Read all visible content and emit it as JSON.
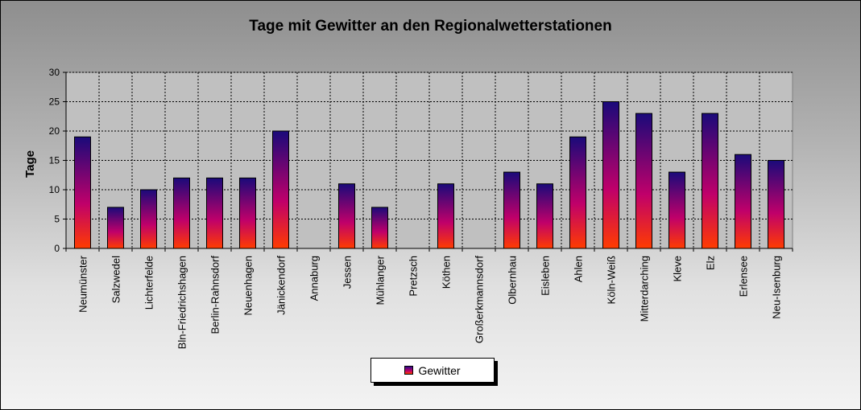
{
  "chart_data": {
    "type": "bar",
    "title": "Tage mit Gewitter  an den Regionalwetterstationen",
    "ylabel": "Tage",
    "xlabel": "",
    "ylim": [
      0,
      30
    ],
    "yticks": [
      0,
      5,
      10,
      15,
      20,
      25,
      30
    ],
    "grid": true,
    "legend_position": "bottom",
    "categories": [
      "Neumünster",
      "Salzwedel",
      "Lichterfelde",
      "Bln-Friedrichshagen",
      "Berlin-Rahnsdorf",
      "Neuenhagen",
      "Jänickendorf",
      "Annaburg",
      "Jessen",
      "Mühlanger",
      "Pretzsch",
      "Köthen",
      "Großerkmannsdorf",
      "Olbernhau",
      "Eisleben",
      "Ahlen",
      "Köln-Weiß",
      "Mitterdarching",
      "Kleve",
      "Elz",
      "Erlensee",
      "Neu-Isenburg"
    ],
    "series": [
      {
        "name": "Gewitter",
        "values": [
          19,
          7,
          10,
          12,
          12,
          12,
          20,
          0,
          11,
          7,
          0,
          11,
          0,
          13,
          11,
          19,
          25,
          23,
          13,
          23,
          16,
          15
        ],
        "colors": {
          "top": "#1a0a7a",
          "middle": "#c0006a",
          "bottom": "#ff3c00"
        }
      }
    ]
  }
}
